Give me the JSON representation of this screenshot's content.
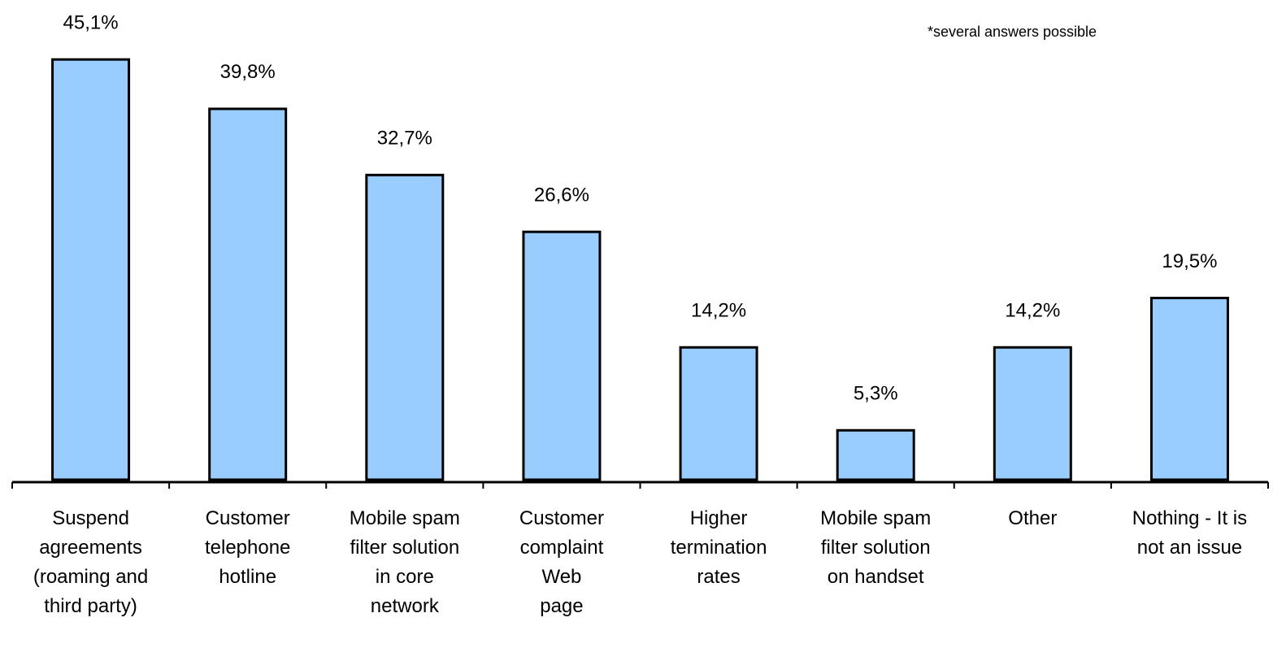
{
  "chart_data": {
    "type": "bar",
    "note": "*several answers possible",
    "categories": [
      "Suspend\nagreements\n(roaming and\nthird party)",
      "Customer\ntelephone\nhotline",
      "Mobile spam\nfilter solution\nin core\nnetwork",
      "Customer\ncomplaint\nWeb\npage",
      "Higher\ntermination\nrates",
      "Mobile spam\nfilter solution\non handset",
      "Other",
      "Nothing - It is\nnot an issue"
    ],
    "values": [
      45.1,
      39.8,
      32.7,
      26.6,
      14.2,
      5.3,
      14.2,
      19.5
    ],
    "value_labels": [
      "45,1%",
      "39,8%",
      "32,7%",
      "26,6%",
      "14,2%",
      "5,3%",
      "14,2%",
      "19,5%"
    ],
    "color": "#99ccff",
    "ylim": [
      0,
      50
    ]
  }
}
